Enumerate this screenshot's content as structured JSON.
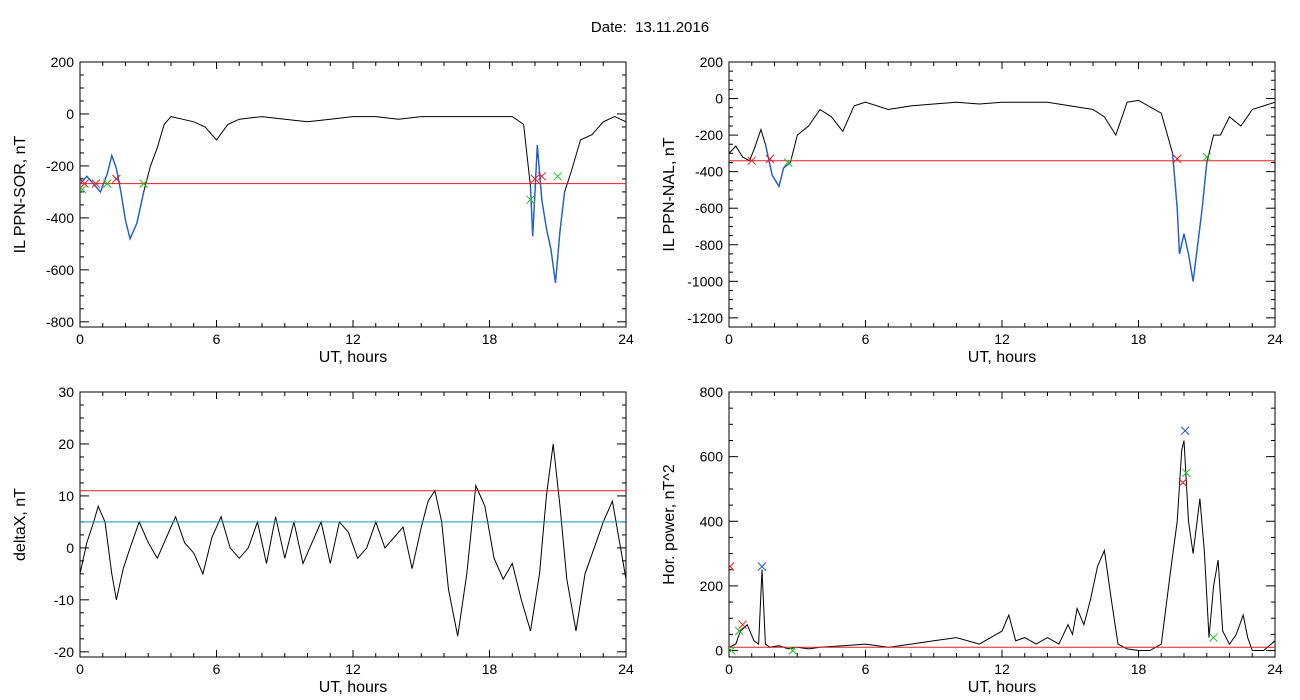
{
  "figure": {
    "date_label": "Date:",
    "date_value": "13.11.2016"
  },
  "chart_data": [
    {
      "type": "line",
      "id": "ppn-sor",
      "xlabel": "UT, hours",
      "ylabel": "IL PPN-SOR, nT",
      "xlim": [
        0,
        24
      ],
      "ylim": [
        -820,
        200
      ],
      "xticks": [
        0,
        6,
        12,
        18,
        24
      ],
      "yticks": [
        -800,
        -600,
        -400,
        -200,
        0,
        200
      ],
      "grid": false,
      "series": [
        {
          "role": "IL index",
          "color": "#000000",
          "x": [
            0,
            0.3,
            0.6,
            0.9,
            1.2,
            1.4,
            1.6,
            1.8,
            2.0,
            2.2,
            2.5,
            2.8,
            3.1,
            3.4,
            3.7,
            4.0,
            4.5,
            5.0,
            5.5,
            6.0,
            6.5,
            7.0,
            8.0,
            9.0,
            10.0,
            11.0,
            12.0,
            13.0,
            14.0,
            15.0,
            16.0,
            17.0,
            18.0,
            19.0,
            19.5,
            19.8,
            19.9,
            20.0,
            20.1,
            20.3,
            20.5,
            20.7,
            20.9,
            21.1,
            21.3,
            21.6,
            22.0,
            22.5,
            23.0,
            23.5,
            24.0
          ],
          "y": [
            -270,
            -240,
            -270,
            -300,
            -230,
            -160,
            -210,
            -300,
            -410,
            -480,
            -420,
            -300,
            -200,
            -130,
            -40,
            -10,
            -20,
            -30,
            -50,
            -100,
            -40,
            -20,
            -10,
            -20,
            -30,
            -20,
            -10,
            -10,
            -20,
            -10,
            -10,
            -10,
            -10,
            -10,
            -40,
            -280,
            -470,
            -300,
            -120,
            -330,
            -440,
            -520,
            -650,
            -450,
            -300,
            -220,
            -100,
            -80,
            -30,
            -10,
            -30
          ]
        },
        {
          "role": "substorm segments",
          "color": "#1f5fd0",
          "segments": [
            {
              "x": [
                0,
                0.3,
                0.6,
                0.9,
                1.2,
                1.4,
                1.6,
                1.8,
                2.0,
                2.2,
                2.5,
                2.8
              ],
              "y": [
                -270,
                -240,
                -270,
                -300,
                -230,
                -160,
                -210,
                -300,
                -410,
                -480,
                -420,
                -300
              ]
            },
            {
              "x": [
                19.8,
                19.9,
                20.0,
                20.1,
                20.3,
                20.5,
                20.7,
                20.9,
                21.1,
                21.3
              ],
              "y": [
                -280,
                -470,
                -300,
                -120,
                -330,
                -440,
                -520,
                -650,
                -450,
                -300
              ]
            }
          ]
        },
        {
          "role": "threshold",
          "color": "#e02020",
          "x": [
            0,
            24
          ],
          "y": [
            -268,
            -268
          ]
        }
      ],
      "markers": [
        {
          "color": "#e02020",
          "x": [
            0.2,
            0.7,
            1.6,
            20.0,
            20.3
          ],
          "y": [
            -268,
            -268,
            -250,
            -250,
            -240
          ]
        },
        {
          "color": "#20c020",
          "x": [
            0.1,
            1.2,
            2.8,
            19.8,
            21.0
          ],
          "y": [
            -290,
            -268,
            -268,
            -330,
            -240
          ]
        }
      ]
    },
    {
      "type": "line",
      "id": "ppn-nal",
      "xlabel": "UT, hours",
      "ylabel": "IL PPN-NAL, nT",
      "xlim": [
        0,
        24
      ],
      "ylim": [
        -1250,
        200
      ],
      "xticks": [
        0,
        6,
        12,
        18,
        24
      ],
      "yticks": [
        -1200,
        -1000,
        -800,
        -600,
        -400,
        -200,
        0,
        200
      ],
      "grid": false,
      "series": [
        {
          "role": "IL index",
          "color": "#000000",
          "x": [
            0,
            0.3,
            0.6,
            0.9,
            1.1,
            1.4,
            1.6,
            1.9,
            2.2,
            2.4,
            2.7,
            3.0,
            3.5,
            4.0,
            4.5,
            5.0,
            5.5,
            6.0,
            7.0,
            8.0,
            9.0,
            10.0,
            11.0,
            12.0,
            13.0,
            14.0,
            15.0,
            16.0,
            16.5,
            17.0,
            17.5,
            18.0,
            19.0,
            19.5,
            19.7,
            19.8,
            20.0,
            20.2,
            20.4,
            20.6,
            20.8,
            21.0,
            21.3,
            21.6,
            22.0,
            22.5,
            23.0,
            23.5,
            24.0
          ],
          "y": [
            -300,
            -260,
            -320,
            -340,
            -280,
            -170,
            -250,
            -420,
            -480,
            -380,
            -350,
            -200,
            -150,
            -60,
            -100,
            -180,
            -40,
            -20,
            -60,
            -40,
            -30,
            -20,
            -30,
            -20,
            -20,
            -20,
            -40,
            -60,
            -100,
            -200,
            -20,
            -10,
            -80,
            -300,
            -600,
            -850,
            -740,
            -850,
            -1000,
            -800,
            -600,
            -350,
            -200,
            -200,
            -100,
            -150,
            -60,
            -40,
            -20
          ]
        },
        {
          "role": "substorm segments",
          "color": "#1f5fd0",
          "segments": [
            {
              "x": [
                1.6,
                1.9,
                2.2,
                2.4,
                2.7
              ],
              "y": [
                -250,
                -420,
                -480,
                -380,
                -350
              ]
            },
            {
              "x": [
                19.5,
                19.7,
                19.8,
                20.0,
                20.2,
                20.4,
                20.6,
                20.8,
                21.0
              ],
              "y": [
                -300,
                -600,
                -850,
                -740,
                -850,
                -1000,
                -800,
                -600,
                -350
              ]
            }
          ]
        },
        {
          "role": "threshold",
          "color": "#e02020",
          "x": [
            0,
            24
          ],
          "y": [
            -340,
            -340
          ]
        }
      ],
      "markers": [
        {
          "color": "#e02020",
          "x": [
            1.0,
            1.8,
            19.7
          ],
          "y": [
            -340,
            -330,
            -330
          ]
        },
        {
          "color": "#20c020",
          "x": [
            2.6,
            21.0
          ],
          "y": [
            -350,
            -320
          ]
        }
      ]
    },
    {
      "type": "line",
      "id": "deltax",
      "xlabel": "UT, hours",
      "ylabel": "deltaX, nT",
      "xlim": [
        0,
        24
      ],
      "ylim": [
        -21,
        30
      ],
      "xticks": [
        0,
        6,
        12,
        18,
        24
      ],
      "yticks": [
        -20,
        -10,
        0,
        10,
        20,
        30
      ],
      "grid": false,
      "series": [
        {
          "role": "deltaX",
          "color": "#000000",
          "x": [
            0,
            0.3,
            0.6,
            0.8,
            1.1,
            1.4,
            1.6,
            1.9,
            2.2,
            2.6,
            3.0,
            3.4,
            3.8,
            4.2,
            4.6,
            5.0,
            5.4,
            5.8,
            6.2,
            6.6,
            7.0,
            7.4,
            7.8,
            8.2,
            8.6,
            9.0,
            9.4,
            9.8,
            10.2,
            10.6,
            11.0,
            11.4,
            11.8,
            12.2,
            12.6,
            13.0,
            13.4,
            13.8,
            14.2,
            14.6,
            15.0,
            15.3,
            15.6,
            15.9,
            16.2,
            16.6,
            17.0,
            17.4,
            17.8,
            18.2,
            18.6,
            19.0,
            19.4,
            19.8,
            20.2,
            20.5,
            20.8,
            21.1,
            21.4,
            21.8,
            22.2,
            22.6,
            23.0,
            23.4,
            24.0
          ],
          "y": [
            -5,
            1,
            5,
            8,
            5,
            -5,
            -10,
            -4,
            0,
            5,
            1,
            -2,
            2,
            6,
            1,
            -1,
            -5,
            2,
            6,
            0,
            -2,
            0,
            5,
            -3,
            6,
            -2,
            5,
            -3,
            1,
            5,
            -3,
            5,
            3,
            -2,
            0,
            5,
            0,
            2,
            4,
            -4,
            4,
            9,
            11,
            5,
            -8,
            -17,
            -5,
            12,
            8,
            -2,
            -6,
            -3,
            -10,
            -16,
            -5,
            10,
            20,
            8,
            -6,
            -16,
            -5,
            0,
            5,
            9,
            -6
          ]
        },
        {
          "role": "upper threshold",
          "color": "#e02020",
          "x": [
            0,
            24
          ],
          "y": [
            11,
            11
          ]
        },
        {
          "role": "lower threshold",
          "color": "#2090c0",
          "x": [
            0,
            24
          ],
          "y": [
            5,
            5
          ]
        }
      ]
    },
    {
      "type": "line",
      "id": "hor-power",
      "xlabel": "UT, hours",
      "ylabel": "Hor. power, nT^2",
      "xlim": [
        0,
        24
      ],
      "ylim": [
        -20,
        800
      ],
      "xticks": [
        0,
        6,
        12,
        18,
        24
      ],
      "yticks": [
        0,
        200,
        400,
        600,
        800
      ],
      "grid": false,
      "series": [
        {
          "role": "power",
          "color": "#000000",
          "x": [
            0,
            0.3,
            0.5,
            0.8,
            1.1,
            1.3,
            1.45,
            1.6,
            1.8,
            2.2,
            2.6,
            3.0,
            3.5,
            4.0,
            5.0,
            6.0,
            7.0,
            8.0,
            9.0,
            10.0,
            11.0,
            12.0,
            12.3,
            12.6,
            13.0,
            13.5,
            14.0,
            14.5,
            14.9,
            15.1,
            15.3,
            15.6,
            15.9,
            16.2,
            16.5,
            16.8,
            17.1,
            17.5,
            18.0,
            18.5,
            19.0,
            19.4,
            19.7,
            19.9,
            20.0,
            20.2,
            20.4,
            20.7,
            20.9,
            21.1,
            21.3,
            21.5,
            21.7,
            22.0,
            22.3,
            22.6,
            22.8,
            23.0,
            23.5,
            24.0
          ],
          "y": [
            10,
            20,
            60,
            80,
            30,
            20,
            250,
            20,
            10,
            15,
            5,
            10,
            5,
            10,
            15,
            20,
            10,
            20,
            30,
            40,
            20,
            60,
            110,
            30,
            40,
            20,
            40,
            20,
            80,
            50,
            130,
            80,
            160,
            260,
            310,
            160,
            20,
            5,
            0,
            0,
            20,
            240,
            400,
            620,
            650,
            400,
            300,
            470,
            300,
            40,
            200,
            280,
            60,
            20,
            50,
            110,
            40,
            0,
            0,
            30
          ]
        },
        {
          "role": "threshold",
          "color": "#e02020",
          "x": [
            0,
            24
          ],
          "y": [
            10,
            10
          ]
        }
      ],
      "markers": [
        {
          "color": "#e02020",
          "x": [
            0.05,
            0.6,
            19.95
          ],
          "y": [
            260,
            80,
            520
          ]
        },
        {
          "color": "#1f5fd0",
          "x": [
            1.45,
            20.05
          ],
          "y": [
            260,
            680
          ]
        },
        {
          "color": "#20c020",
          "x": [
            0.1,
            0.45,
            2.8,
            20.1,
            21.3
          ],
          "y": [
            0,
            60,
            0,
            550,
            40
          ]
        }
      ]
    }
  ]
}
